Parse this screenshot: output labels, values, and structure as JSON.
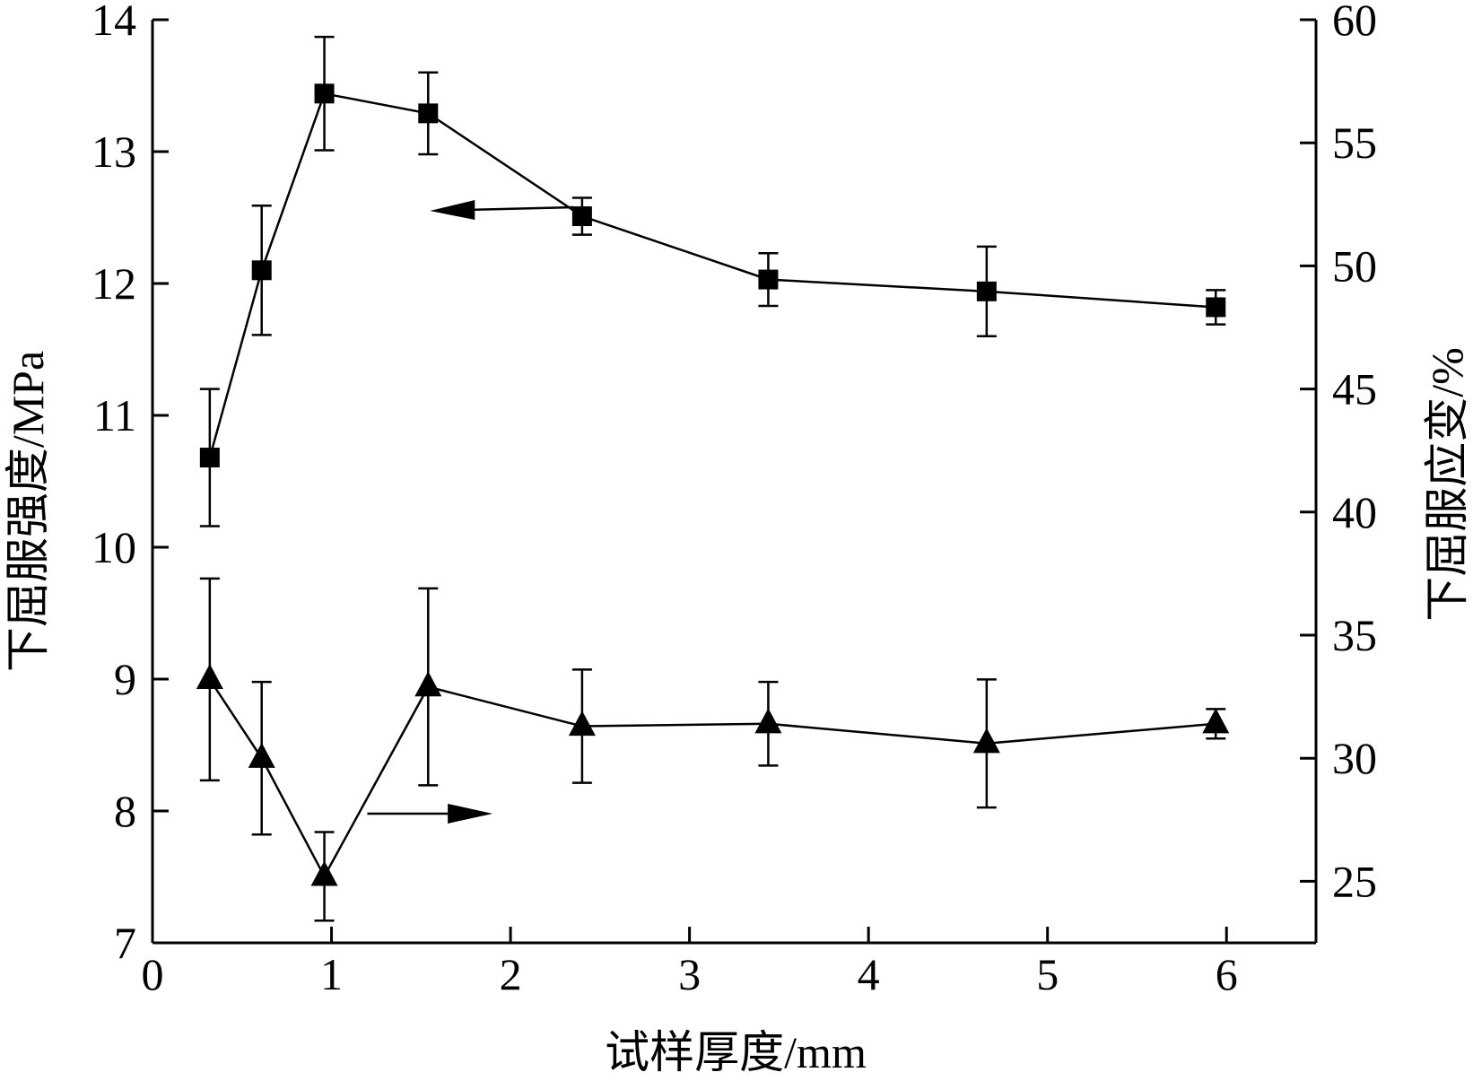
{
  "chart_data": {
    "type": "line",
    "title": "",
    "xlabel": "试样厚度/mm",
    "ylabel_left": "下屈服强度/MPa",
    "ylabel_right": "下屈服应变/%",
    "xlim": [
      0,
      6.5
    ],
    "ylim_left": [
      7,
      14
    ],
    "ylim_right": [
      22.5,
      60
    ],
    "x_ticks": [
      "0",
      "1",
      "2",
      "3",
      "4",
      "5",
      "6"
    ],
    "y_left_ticks": [
      "7",
      "8",
      "9",
      "10",
      "11",
      "12",
      "13",
      "14"
    ],
    "y_right_ticks": [
      "25",
      "30",
      "35",
      "40",
      "45",
      "50",
      "55",
      "60"
    ],
    "grid": false,
    "series": [
      {
        "axis": "left",
        "marker": "square",
        "x": [
          0.32,
          0.61,
          0.96,
          1.54,
          2.4,
          3.44,
          4.66,
          5.94
        ],
        "y": [
          10.68,
          12.1,
          13.44,
          13.29,
          12.51,
          12.03,
          11.94,
          11.82
        ],
        "err": [
          0.52,
          0.49,
          0.43,
          0.31,
          0.14,
          0.2,
          0.34,
          0.13
        ]
      },
      {
        "axis": "right",
        "marker": "triangle",
        "x": [
          0.32,
          0.61,
          0.96,
          1.54,
          2.4,
          3.44,
          4.66,
          5.94
        ],
        "y": [
          33.2,
          30.0,
          25.2,
          32.9,
          31.3,
          31.4,
          30.6,
          31.4
        ],
        "err": [
          4.1,
          3.1,
          1.8,
          4.0,
          2.3,
          1.7,
          2.6,
          0.6
        ]
      }
    ],
    "annotations": [
      {
        "type": "arrow",
        "direction": "left",
        "points_to": "left-axis",
        "series": 0
      },
      {
        "type": "arrow",
        "direction": "right",
        "points_to": "right-axis",
        "series": 1
      }
    ]
  }
}
